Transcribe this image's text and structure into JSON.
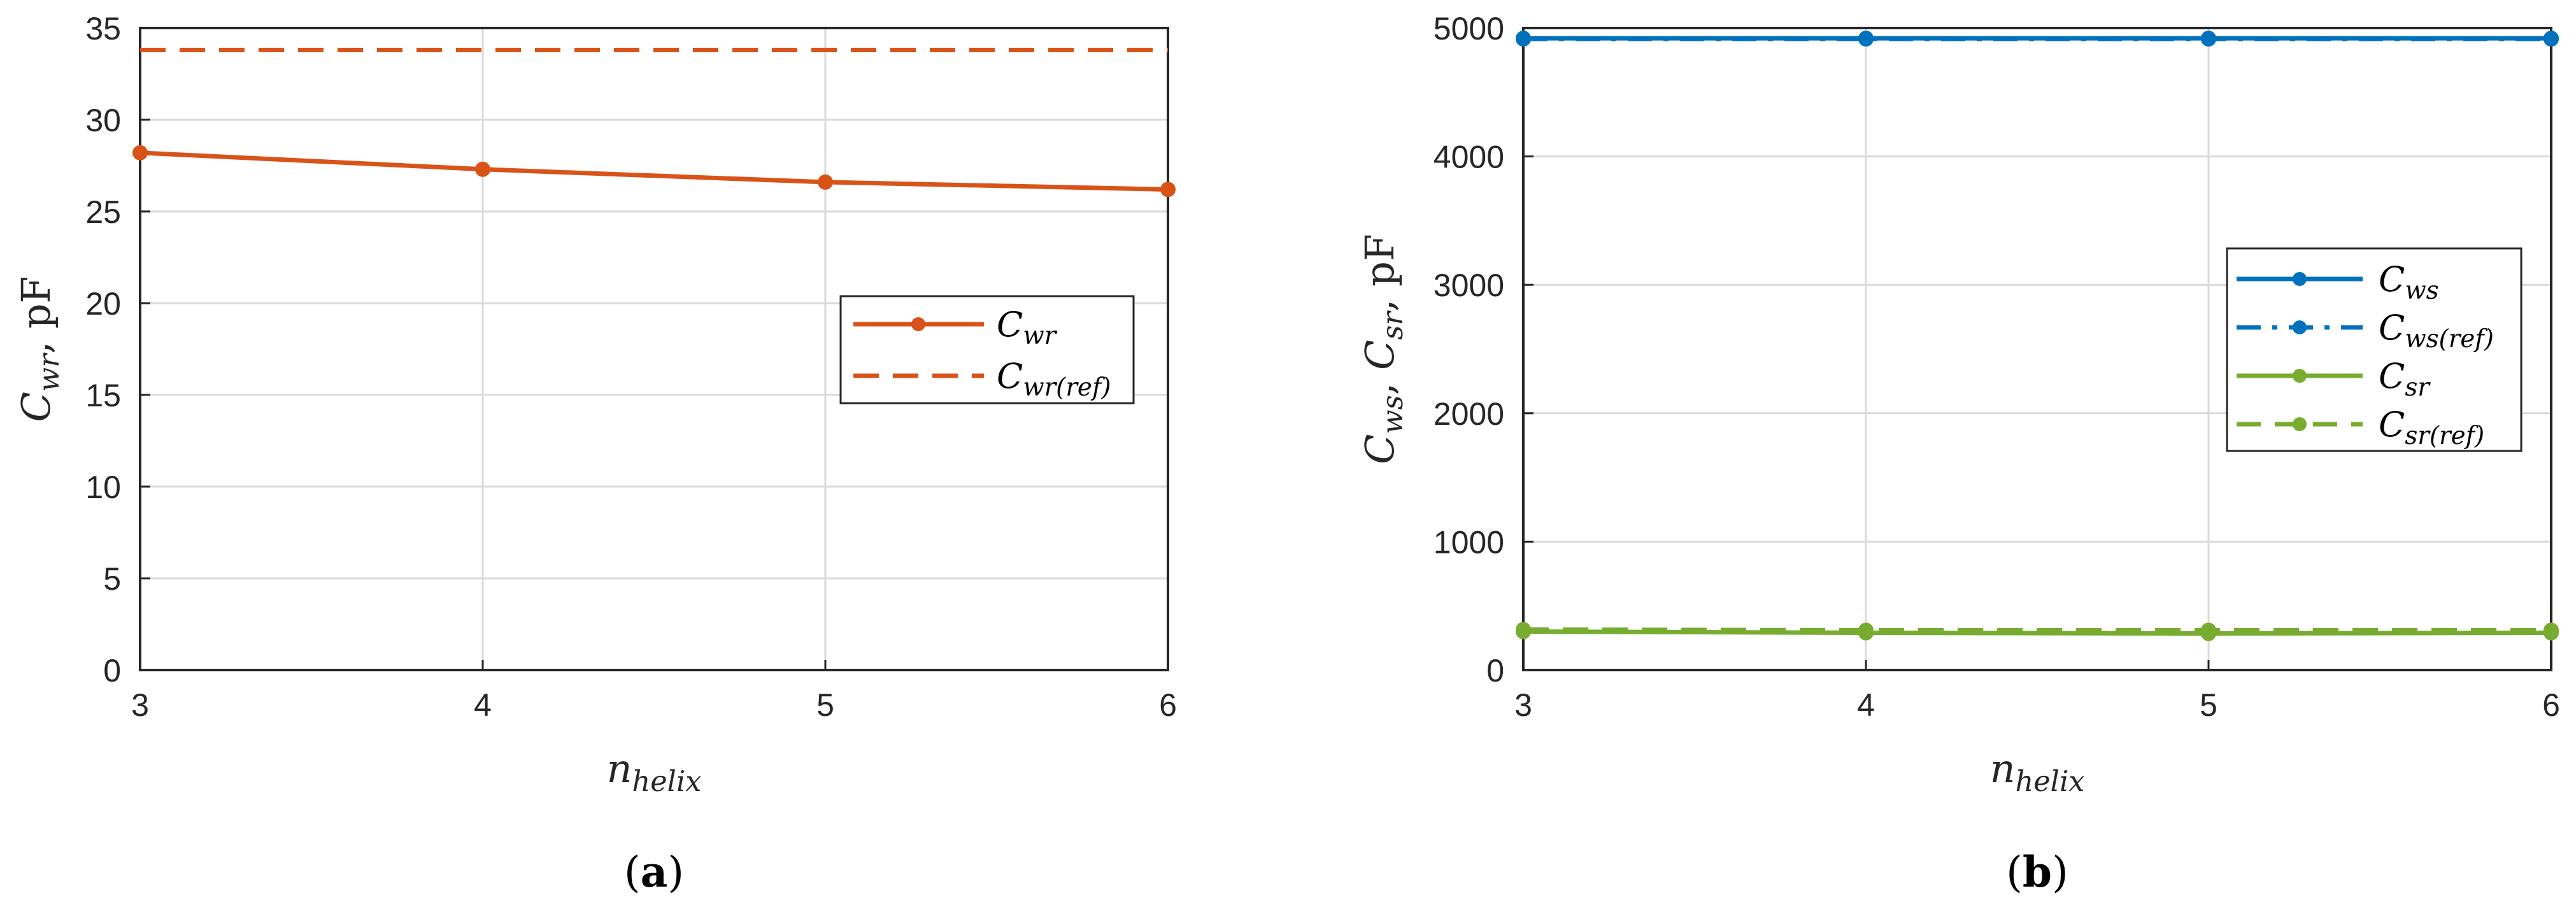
{
  "captions": {
    "a_open": "(",
    "a_letter": "a",
    "a_close": ")",
    "b_open": "(",
    "b_letter": "b",
    "b_close": ")"
  },
  "chart_data": [
    {
      "type": "line",
      "panel": "a",
      "x": [
        3,
        4,
        5,
        6
      ],
      "xlim": [
        3,
        6
      ],
      "ylim": [
        0,
        35
      ],
      "xticks": [
        "3",
        "4",
        "5",
        "6"
      ],
      "yticks": [
        "0",
        "5",
        "10",
        "15",
        "20",
        "25",
        "30",
        "35"
      ],
      "xlabel": {
        "main": "n",
        "sub": "helix"
      },
      "ylabel": {
        "main": "C",
        "sub": "wr",
        "suffix": ", pF"
      },
      "grid": true,
      "legend_position": "right",
      "series": [
        {
          "name": {
            "main": "C",
            "sub": "wr"
          },
          "values": [
            28.2,
            27.3,
            26.6,
            26.2
          ],
          "color": "#d95319",
          "style": "solid",
          "marker": true
        },
        {
          "name": {
            "main": "C",
            "sub": "wr(ref)"
          },
          "values": [
            33.8,
            33.8,
            33.8,
            33.8
          ],
          "color": "#d95319",
          "style": "dashed",
          "marker": false
        }
      ]
    },
    {
      "type": "line",
      "panel": "b",
      "x": [
        3,
        4,
        5,
        6
      ],
      "xlim": [
        3,
        6
      ],
      "ylim": [
        0,
        5000
      ],
      "xticks": [
        "3",
        "4",
        "5",
        "6"
      ],
      "yticks": [
        "0",
        "1000",
        "2000",
        "3000",
        "4000",
        "5000"
      ],
      "xlabel": {
        "main": "n",
        "sub": "helix"
      },
      "ylabel": {
        "main1": "C",
        "sub1": "ws",
        "sep": ",  ",
        "main2": "C",
        "sub2": "sr",
        "suffix": ", pF"
      },
      "grid": true,
      "legend_position": "right",
      "series": [
        {
          "name": {
            "main": "C",
            "sub": "ws"
          },
          "values": [
            4920,
            4920,
            4920,
            4920
          ],
          "color": "#0072bd",
          "style": "solid",
          "marker": true
        },
        {
          "name": {
            "main": "C",
            "sub": "ws(ref)"
          },
          "values": [
            4915,
            4915,
            4915,
            4915
          ],
          "color": "#0072bd",
          "style": "dashdot",
          "marker": true
        },
        {
          "name": {
            "main": "C",
            "sub": "sr"
          },
          "values": [
            300,
            290,
            285,
            290
          ],
          "color": "#77ac30",
          "style": "solid",
          "marker": true
        },
        {
          "name": {
            "main": "C",
            "sub": "sr(ref)"
          },
          "values": [
            315,
            310,
            310,
            310
          ],
          "color": "#77ac30",
          "style": "dashed",
          "marker": true
        }
      ]
    }
  ]
}
